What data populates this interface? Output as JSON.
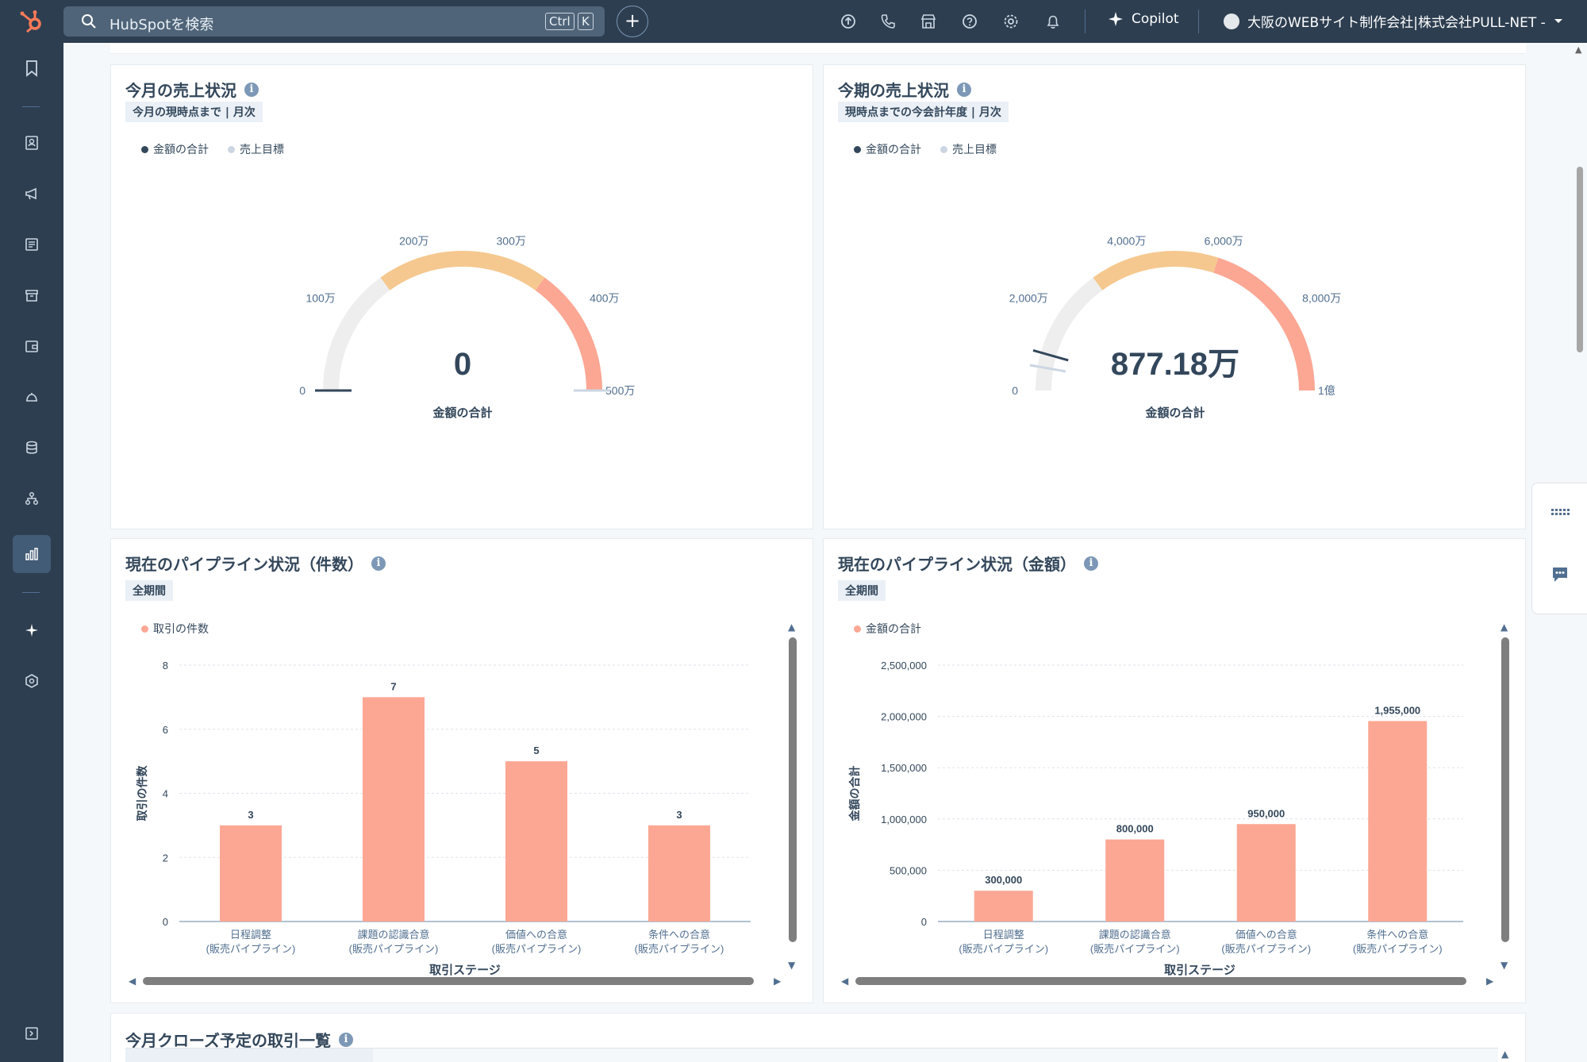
{
  "topbar": {
    "search_placeholder": "HubSpotを検索",
    "kbd_ctrl": "Ctrl",
    "kbd_k": "K",
    "add_label": "+",
    "copilot_label": "Copilot",
    "account_name": "大阪のWEBサイト制作会社|株式会社PULL-NET -"
  },
  "nav": {
    "icons": [
      "bookmark-icon",
      "contacts-icon",
      "marketing-icon",
      "content-icon",
      "commerce-icon",
      "sales-icon",
      "service-icon",
      "data-icon",
      "automation-icon",
      "reporting-icon",
      "ai-icon",
      "settings-icon"
    ]
  },
  "gauge_month": {
    "title": "今月の売上状況",
    "tag": "今月の現時点まで | 月次",
    "legend": [
      "金額の合計",
      "売上目標"
    ],
    "value_label": "0",
    "caption": "金額の合計",
    "ticks": [
      "0",
      "100万",
      "200万",
      "300万",
      "400万",
      "500万"
    ],
    "value": 0,
    "max": 5000000,
    "target": 5000000
  },
  "gauge_period": {
    "title": "今期の売上状況",
    "tag": "現時点までの今会計年度 | 月次",
    "legend": [
      "金額の合計",
      "売上目標"
    ],
    "value_label": "877.18万",
    "caption": "金額の合計",
    "ticks": [
      "0",
      "2,000万",
      "4,000万",
      "6,000万",
      "8,000万",
      "1億"
    ],
    "value": 8771800,
    "max": 100000000,
    "target": 5500000
  },
  "colors": {
    "gray_band": "#eeeeee",
    "orange_band": "#f5c88f",
    "salmon_band": "#fba794",
    "bar": "#fba794",
    "needle": "#33475b",
    "target_needle": "#cbd6e2"
  },
  "pipeline_count": {
    "title": "現在のパイプライン状況（件数）",
    "tag": "全期間",
    "legend": "取引の件数",
    "chart_data": {
      "type": "bar",
      "categories": [
        "日程調整 (販売パイプライン)",
        "課題の認識合意 (販売パイプライン)",
        "価値への合意 (販売パイプライン)",
        "条件への合意 (販売パイプライン)"
      ],
      "cat_line1": [
        "日程調整",
        "課題の認識合意",
        "価値への合意",
        "条件への合意"
      ],
      "cat_line2": [
        "(販売パイプライン)",
        "(販売パイプライン)",
        "(販売パイプライン)",
        "(販売パイプライン)"
      ],
      "values": [
        3,
        7,
        5,
        3
      ],
      "value_labels": [
        "3",
        "7",
        "5",
        "3"
      ],
      "yticks": [
        "0",
        "2",
        "4",
        "6",
        "8"
      ],
      "ylim": [
        0,
        8
      ],
      "xlabel": "取引ステージ",
      "ylabel": "取引の件数"
    }
  },
  "pipeline_amount": {
    "title": "現在のパイプライン状況（金額）",
    "tag": "全期間",
    "legend": "金額の合計",
    "chart_data": {
      "type": "bar",
      "categories": [
        "日程調整 (販売パイプライン)",
        "課題の認識合意 (販売パイプライン)",
        "価値への合意 (販売パイプライン)",
        "条件への合意 (販売パイプライン)"
      ],
      "cat_line1": [
        "日程調整",
        "課題の認識合意",
        "価値への合意",
        "条件への合意"
      ],
      "cat_line2": [
        "(販売パイプライン)",
        "(販売パイプライン)",
        "(販売パイプライン)",
        "(販売パイプライン)"
      ],
      "values": [
        300000,
        800000,
        950000,
        1955000
      ],
      "value_labels": [
        "300,000",
        "800,000",
        "950,000",
        "1,955,000"
      ],
      "yticks": [
        "0",
        "500,000",
        "1,000,000",
        "1,500,000",
        "2,000,000",
        "2,500,000"
      ],
      "ylim": [
        0,
        2500000
      ],
      "xlabel": "取引ステージ",
      "ylabel": "金額の合計"
    }
  },
  "deals_list": {
    "title": "今月クローズ予定の取引一覧"
  }
}
